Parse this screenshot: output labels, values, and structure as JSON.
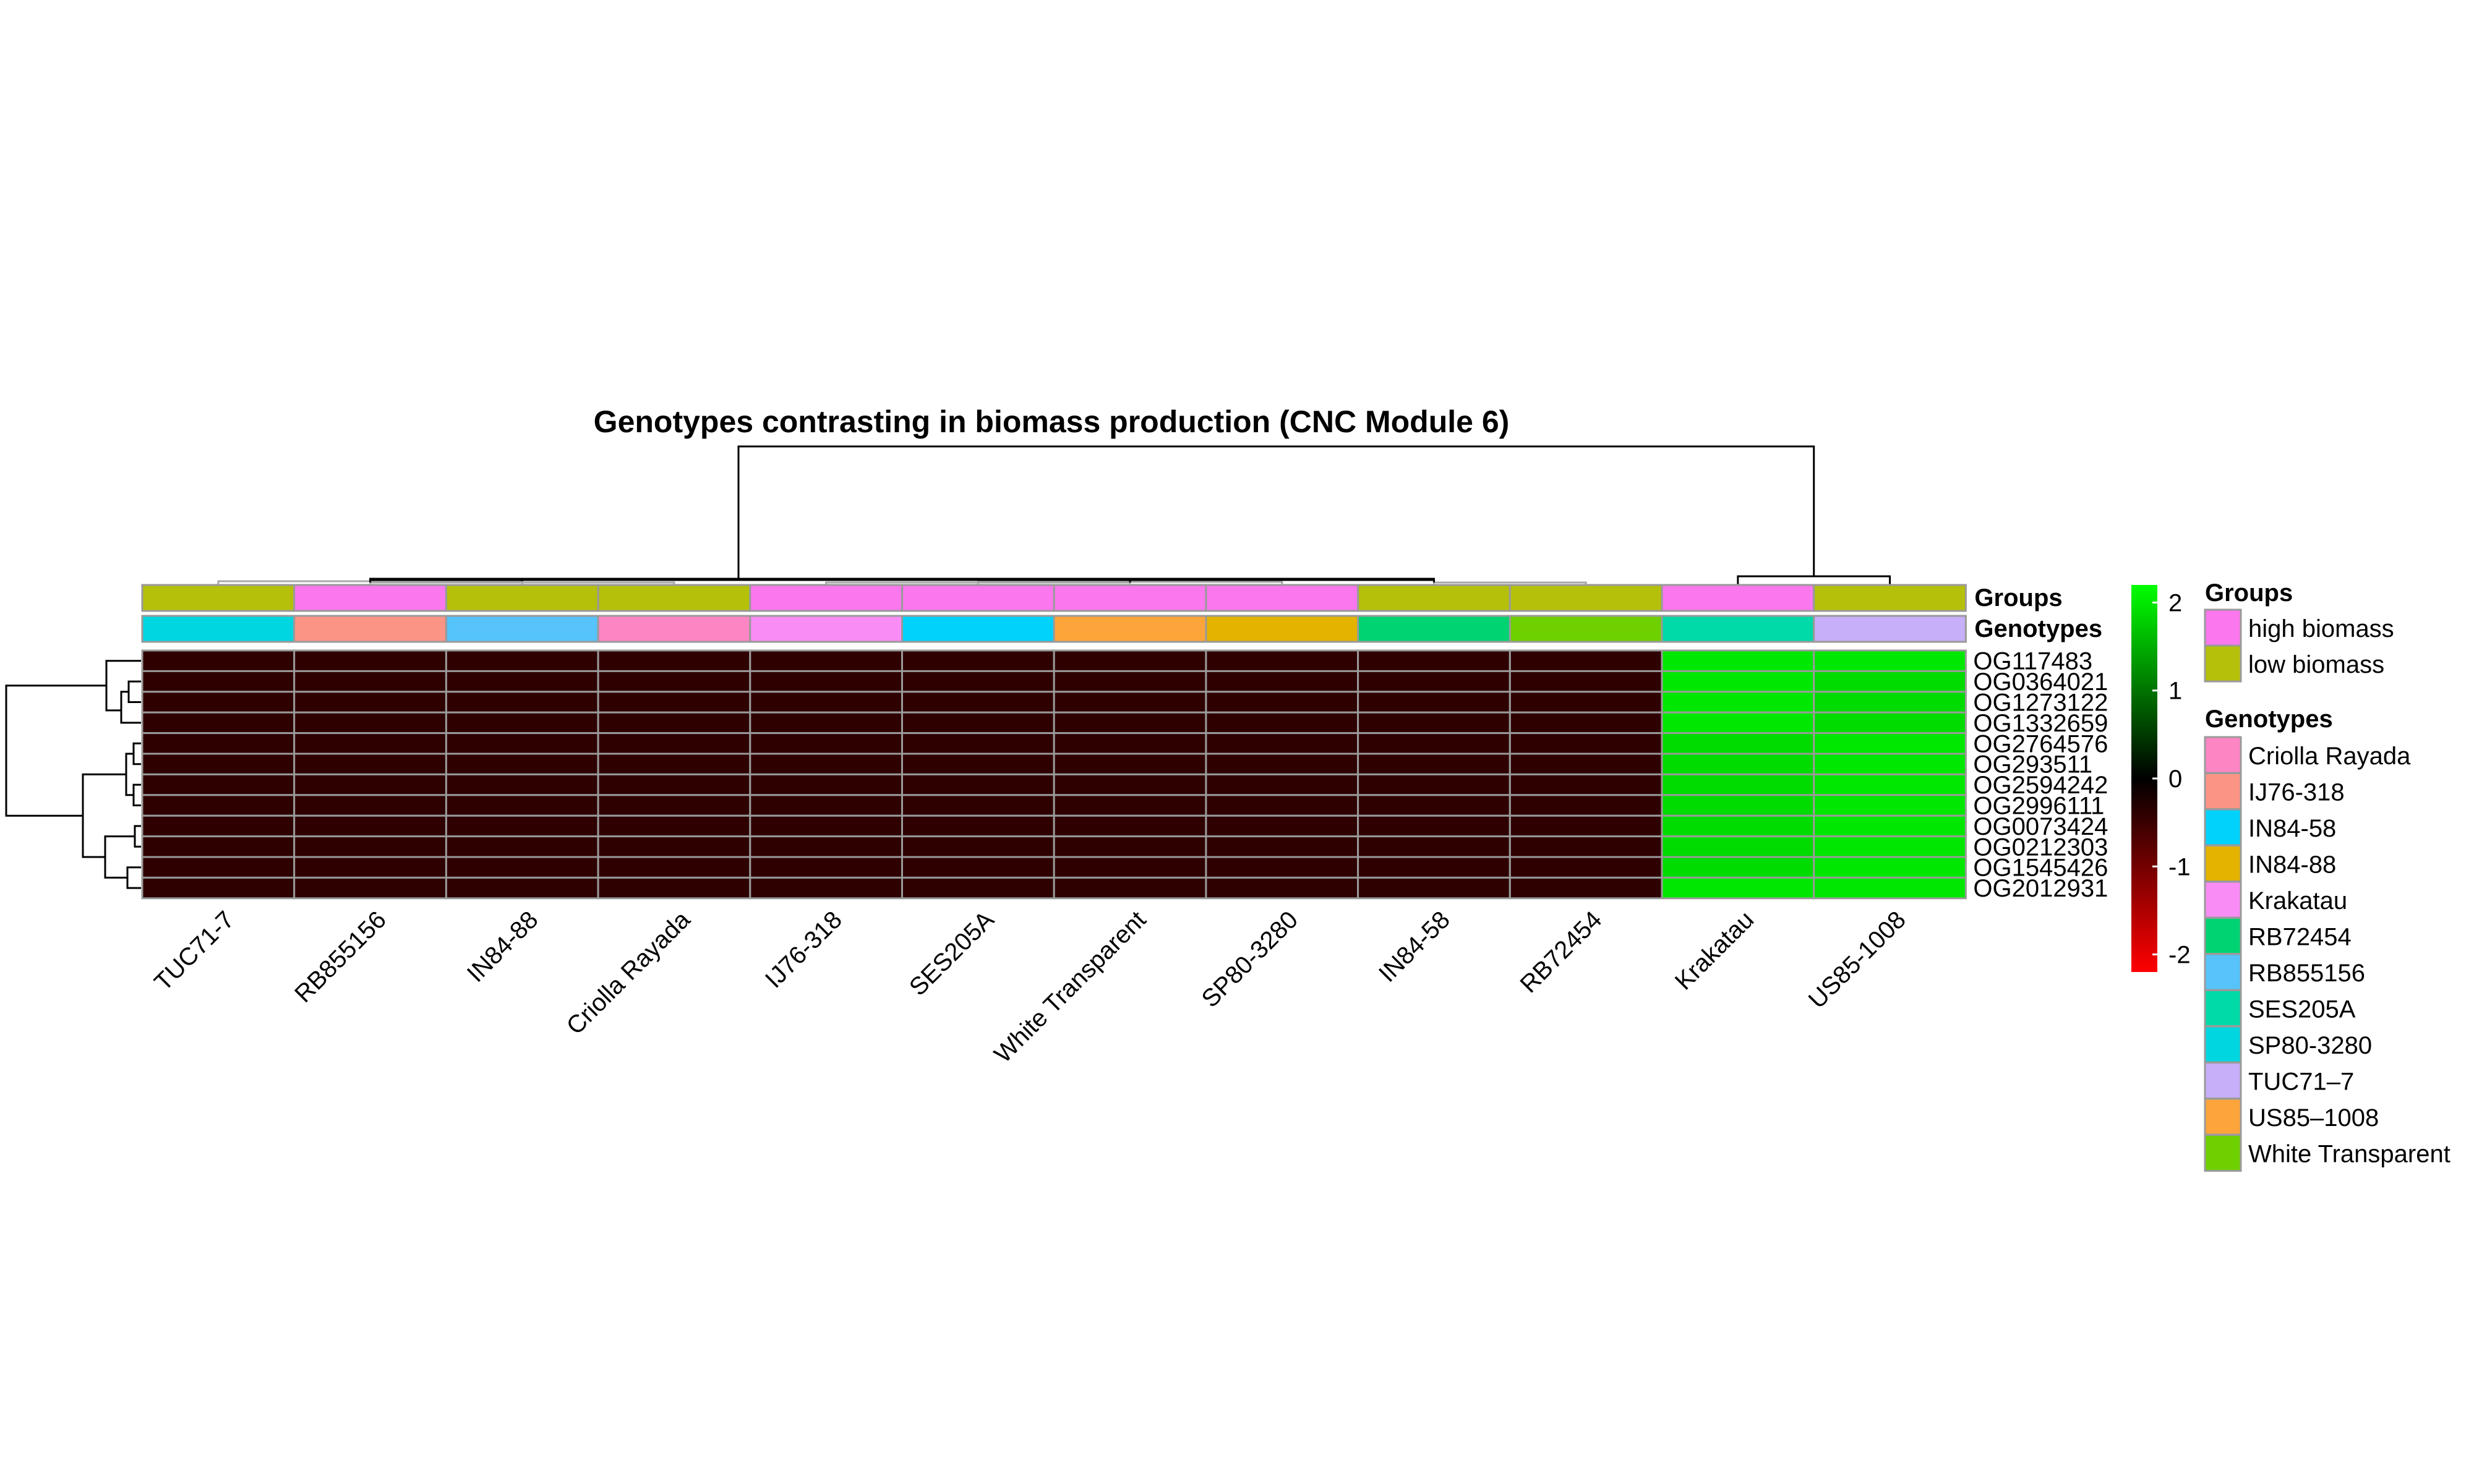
{
  "chart_data": {
    "type": "heatmap",
    "title": "Genotypes contrasting in biomass production (CNC Module 6)",
    "columns": [
      "TUC71-7",
      "RB855156",
      "IN84-88",
      "Criolla Rayada",
      "IJ76-318",
      "SES205A",
      "White Transparent",
      "SP80-3280",
      "IN84-58",
      "RB72454",
      "Krakatau",
      "US85-1008"
    ],
    "rows": [
      "OG117483",
      "OG0364021",
      "OG1273122",
      "OG1332659",
      "OG2764576",
      "OG293511",
      "OG2594242",
      "OG2996111",
      "OG0073424",
      "OG0212303",
      "OG1545426",
      "OG2012931"
    ],
    "values": [
      [
        -0.4,
        -0.4,
        -0.4,
        -0.4,
        -0.4,
        -0.4,
        -0.4,
        -0.4,
        -0.4,
        -0.4,
        2.0,
        2.0
      ],
      [
        -0.4,
        -0.4,
        -0.4,
        -0.4,
        -0.4,
        -0.4,
        -0.4,
        -0.4,
        -0.4,
        -0.4,
        2.0,
        1.9
      ],
      [
        -0.4,
        -0.4,
        -0.4,
        -0.4,
        -0.4,
        -0.4,
        -0.4,
        -0.4,
        -0.4,
        -0.4,
        2.0,
        1.9
      ],
      [
        -0.4,
        -0.4,
        -0.4,
        -0.4,
        -0.4,
        -0.4,
        -0.4,
        -0.4,
        -0.4,
        -0.4,
        2.0,
        1.9
      ],
      [
        -0.4,
        -0.4,
        -0.4,
        -0.4,
        -0.4,
        -0.4,
        -0.4,
        -0.4,
        -0.4,
        -0.4,
        1.9,
        2.0
      ],
      [
        -0.4,
        -0.4,
        -0.4,
        -0.4,
        -0.4,
        -0.4,
        -0.4,
        -0.4,
        -0.4,
        -0.4,
        1.9,
        2.0
      ],
      [
        -0.4,
        -0.4,
        -0.4,
        -0.4,
        -0.4,
        -0.4,
        -0.4,
        -0.4,
        -0.4,
        -0.4,
        1.9,
        2.0
      ],
      [
        -0.4,
        -0.4,
        -0.4,
        -0.4,
        -0.4,
        -0.4,
        -0.4,
        -0.4,
        -0.4,
        -0.4,
        1.9,
        2.0
      ],
      [
        -0.4,
        -0.4,
        -0.4,
        -0.4,
        -0.4,
        -0.4,
        -0.4,
        -0.4,
        -0.4,
        -0.4,
        1.9,
        2.0
      ],
      [
        -0.4,
        -0.4,
        -0.4,
        -0.4,
        -0.4,
        -0.4,
        -0.4,
        -0.4,
        -0.4,
        -0.4,
        1.9,
        2.0
      ],
      [
        -0.4,
        -0.4,
        -0.4,
        -0.4,
        -0.4,
        -0.4,
        -0.4,
        -0.4,
        -0.4,
        -0.4,
        1.9,
        2.0
      ],
      [
        -0.4,
        -0.4,
        -0.4,
        -0.4,
        -0.4,
        -0.4,
        -0.4,
        -0.4,
        -0.4,
        -0.4,
        2.0,
        2.0
      ]
    ],
    "color_scale": {
      "stops": [
        {
          "value": -2.2,
          "color": "#ff0000"
        },
        {
          "value": 0,
          "color": "#000000"
        },
        {
          "value": 2.2,
          "color": "#00ff00"
        }
      ],
      "ticks": [
        2,
        1,
        0,
        -1,
        -2
      ],
      "tick_labels": [
        "2",
        "1",
        "0",
        "-1",
        "-2"
      ]
    },
    "annotation_row_labels": [
      "Groups",
      "Genotypes"
    ],
    "column_groups": [
      "low biomass",
      "high biomass",
      "low biomass",
      "low biomass",
      "high biomass",
      "high biomass",
      "high biomass",
      "high biomass",
      "low biomass",
      "low biomass",
      "high biomass",
      "low biomass"
    ],
    "column_genotype_colors": [
      "#00d6e0",
      "#fc9486",
      "#56c3fb",
      "#fd85c4",
      "#fa8cf5",
      "#00d2fb",
      "#fda53a",
      "#e3b300",
      "#00d371",
      "#6fd000",
      "#00d9a8",
      "#c7aff9"
    ],
    "legend": {
      "groups_title": "Groups",
      "groups": [
        {
          "label": "high biomass",
          "color": "#fa77ed"
        },
        {
          "label": "low biomass",
          "color": "#b5c00b"
        }
      ],
      "genotypes_title": "Genotypes",
      "genotypes": [
        {
          "label": "Criolla Rayada",
          "color": "#fd85c4"
        },
        {
          "label": "IJ76-318",
          "color": "#fc9486"
        },
        {
          "label": "IN84-58",
          "color": "#00d2fb"
        },
        {
          "label": "IN84-88",
          "color": "#e3b300"
        },
        {
          "label": "Krakatau",
          "color": "#fa8cf5"
        },
        {
          "label": "RB72454",
          "color": "#00d371"
        },
        {
          "label": "RB855156",
          "color": "#56c3fb"
        },
        {
          "label": "SES205A",
          "color": "#00d9a8"
        },
        {
          "label": "SP80-3280",
          "color": "#00d6e0"
        },
        {
          "label": "TUC71–7",
          "color": "#c7aff9"
        },
        {
          "label": "US85–1008",
          "color": "#fda53a"
        },
        {
          "label": "White Transparent",
          "color": "#6fd000"
        }
      ]
    }
  }
}
